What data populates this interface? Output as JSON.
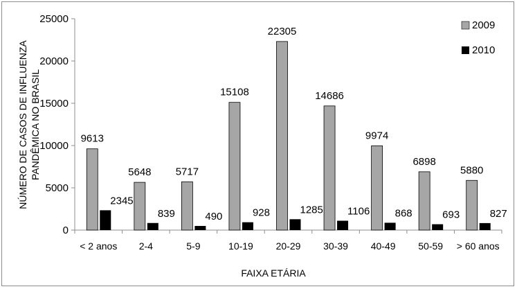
{
  "chart_data": {
    "type": "bar",
    "title": "",
    "xlabel": "FAIXA ETÁRIA",
    "ylabel_lines": [
      "NÚMERO DE CASOS DE INFLUENZA",
      "PANDÊMICA NO BRASIL"
    ],
    "categories": [
      "< 2 anos",
      "2-4",
      "5-9",
      "10-19",
      "20-29",
      "30-39",
      "40-49",
      "50-59",
      "> 60 anos"
    ],
    "series": [
      {
        "name": "2009",
        "color": "#a6a6a6",
        "values": [
          9613,
          5648,
          5717,
          15108,
          22305,
          14686,
          9974,
          6898,
          5880
        ]
      },
      {
        "name": "2010",
        "color": "#000000",
        "values": [
          2345,
          839,
          490,
          928,
          1285,
          1106,
          868,
          693,
          827
        ]
      }
    ],
    "ylim": [
      0,
      25000
    ],
    "yticks": [
      0,
      5000,
      10000,
      15000,
      20000,
      25000
    ],
    "grid": false,
    "legend": "top-right",
    "data_labels": true
  }
}
